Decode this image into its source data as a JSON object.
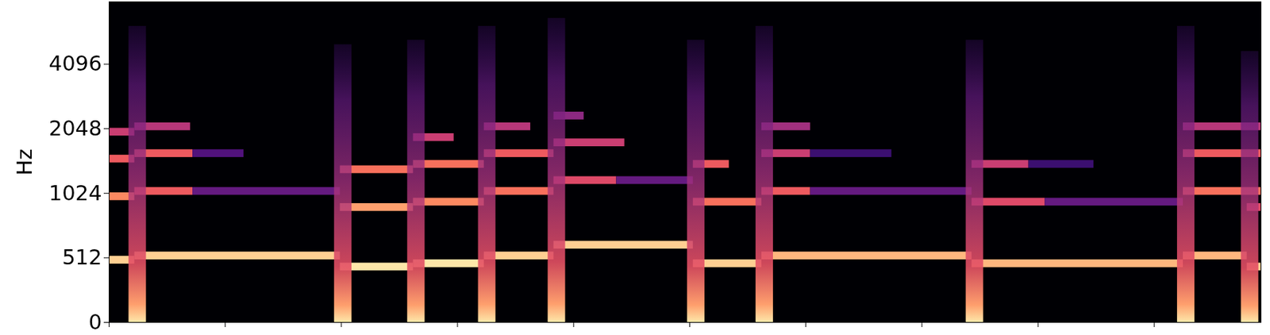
{
  "chart_data": {
    "type": "spectrogram",
    "y_label": "Hz",
    "color": "magma",
    "tick_labels": "y",
    "xlim": [
      0,
      9.92
    ],
    "xticks": [
      0,
      1,
      2,
      3,
      4,
      5,
      6,
      7,
      8,
      9
    ],
    "ylim": [
      0,
      8000
    ],
    "yticks": [
      0,
      512,
      1024,
      2048,
      4096
    ],
    "onsets": [
      {
        "time": 0.22,
        "top": 6150
      },
      {
        "time": 1.99,
        "top": 5050
      },
      {
        "time": 2.62,
        "top": 5300
      },
      {
        "time": 3.23,
        "top": 6150
      },
      {
        "time": 3.83,
        "top": 6700
      },
      {
        "time": 5.03,
        "top": 5300
      },
      {
        "time": 5.62,
        "top": 6150
      },
      {
        "time": 7.43,
        "top": 5300
      },
      {
        "time": 9.25,
        "top": 6150
      },
      {
        "time": 9.8,
        "top": 4700
      }
    ],
    "partials": [
      {
        "start": 0,
        "end": 0.22,
        "freq": 494,
        "intensity": 0.9
      },
      {
        "start": 0,
        "end": 0.22,
        "freq": 988,
        "intensity": 0.75
      },
      {
        "start": 0,
        "end": 0.22,
        "freq": 1480,
        "intensity": 0.65
      },
      {
        "start": 0,
        "end": 0.22,
        "freq": 1975,
        "intensity": 0.55
      },
      {
        "start": 0.22,
        "end": 1.99,
        "freq": 523,
        "intensity": 0.9
      },
      {
        "start": 0.22,
        "end": 0.72,
        "freq": 1046,
        "intensity": 0.65
      },
      {
        "start": 0.72,
        "end": 1.99,
        "freq": 1046,
        "intensity": 0.3
      },
      {
        "start": 0.22,
        "end": 0.72,
        "freq": 1569,
        "intensity": 0.65
      },
      {
        "start": 0.72,
        "end": 1.16,
        "freq": 1569,
        "intensity": 0.25
      },
      {
        "start": 0.22,
        "end": 0.7,
        "freq": 2093,
        "intensity": 0.5
      },
      {
        "start": 1.99,
        "end": 2.62,
        "freq": 440,
        "intensity": 0.95
      },
      {
        "start": 1.99,
        "end": 2.62,
        "freq": 880,
        "intensity": 0.8
      },
      {
        "start": 1.99,
        "end": 2.62,
        "freq": 1320,
        "intensity": 0.7
      },
      {
        "start": 2.62,
        "end": 3.23,
        "freq": 466,
        "intensity": 0.95
      },
      {
        "start": 2.62,
        "end": 3.23,
        "freq": 932,
        "intensity": 0.75
      },
      {
        "start": 2.62,
        "end": 3.23,
        "freq": 1398,
        "intensity": 0.7
      },
      {
        "start": 2.62,
        "end": 2.97,
        "freq": 1864,
        "intensity": 0.55
      },
      {
        "start": 3.23,
        "end": 3.83,
        "freq": 523,
        "intensity": 0.9
      },
      {
        "start": 3.23,
        "end": 3.83,
        "freq": 1046,
        "intensity": 0.7
      },
      {
        "start": 3.23,
        "end": 3.83,
        "freq": 1569,
        "intensity": 0.65
      },
      {
        "start": 3.23,
        "end": 3.63,
        "freq": 2093,
        "intensity": 0.5
      },
      {
        "start": 3.83,
        "end": 5.03,
        "freq": 587,
        "intensity": 0.9
      },
      {
        "start": 3.83,
        "end": 4.37,
        "freq": 1175,
        "intensity": 0.6
      },
      {
        "start": 4.37,
        "end": 5.03,
        "freq": 1175,
        "intensity": 0.3
      },
      {
        "start": 3.83,
        "end": 4.44,
        "freq": 1762,
        "intensity": 0.55
      },
      {
        "start": 3.83,
        "end": 4.09,
        "freq": 2349,
        "intensity": 0.4
      },
      {
        "start": 5.03,
        "end": 5.62,
        "freq": 466,
        "intensity": 0.9
      },
      {
        "start": 5.03,
        "end": 5.62,
        "freq": 932,
        "intensity": 0.7
      },
      {
        "start": 5.03,
        "end": 5.34,
        "freq": 1398,
        "intensity": 0.65
      },
      {
        "start": 5.62,
        "end": 7.43,
        "freq": 523,
        "intensity": 0.85
      },
      {
        "start": 5.62,
        "end": 6.04,
        "freq": 1046,
        "intensity": 0.65
      },
      {
        "start": 6.04,
        "end": 7.43,
        "freq": 1046,
        "intensity": 0.3
      },
      {
        "start": 5.62,
        "end": 6.04,
        "freq": 1569,
        "intensity": 0.55
      },
      {
        "start": 6.04,
        "end": 6.74,
        "freq": 1569,
        "intensity": 0.2
      },
      {
        "start": 5.62,
        "end": 6.04,
        "freq": 2093,
        "intensity": 0.45
      },
      {
        "start": 7.43,
        "end": 9.25,
        "freq": 466,
        "intensity": 0.85
      },
      {
        "start": 7.43,
        "end": 8.06,
        "freq": 932,
        "intensity": 0.6
      },
      {
        "start": 8.06,
        "end": 9.25,
        "freq": 932,
        "intensity": 0.3
      },
      {
        "start": 7.43,
        "end": 7.92,
        "freq": 1398,
        "intensity": 0.55
      },
      {
        "start": 7.92,
        "end": 8.48,
        "freq": 1398,
        "intensity": 0.2
      },
      {
        "start": 9.25,
        "end": 9.8,
        "freq": 523,
        "intensity": 0.85
      },
      {
        "start": 9.25,
        "end": 9.92,
        "freq": 1046,
        "intensity": 0.7
      },
      {
        "start": 9.25,
        "end": 9.92,
        "freq": 1569,
        "intensity": 0.65
      },
      {
        "start": 9.25,
        "end": 9.92,
        "freq": 2093,
        "intensity": 0.5
      },
      {
        "start": 9.8,
        "end": 9.92,
        "freq": 440,
        "intensity": 0.9
      },
      {
        "start": 9.8,
        "end": 9.92,
        "freq": 880,
        "intensity": 0.6
      }
    ]
  }
}
